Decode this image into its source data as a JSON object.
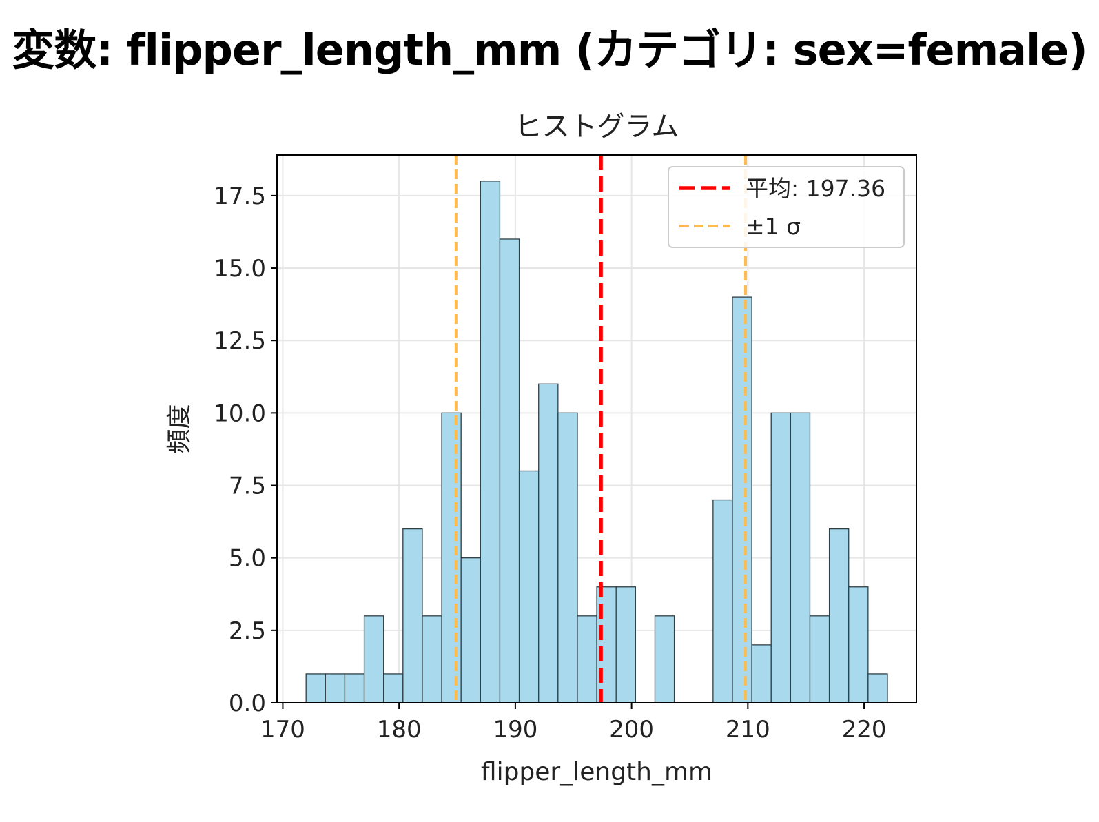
{
  "figure_title": "変数: flipper_length_mm (カテゴリ: sex=female)",
  "colors": {
    "bar_fill": "#a9d9ec",
    "bar_edge": "#2f3f46",
    "mean_line": "#ff0000",
    "sigma_line": "#ffbb4d",
    "grid": "#e6e6e6"
  },
  "chart_data": {
    "type": "bar",
    "subtype": "histogram",
    "title": "ヒストグラム",
    "xlabel": "flipper_length_mm",
    "ylabel": "頻度",
    "xlim": [
      169.5,
      224.5
    ],
    "ylim": [
      0,
      18.9
    ],
    "grid": true,
    "legend_position": "top-right",
    "x_ticks": [
      170,
      180,
      190,
      200,
      210,
      220
    ],
    "x_tick_labels": [
      "170",
      "180",
      "190",
      "200",
      "210",
      "220"
    ],
    "y_ticks": [
      0,
      2.5,
      5,
      7.5,
      10,
      12.5,
      15,
      17.5
    ],
    "y_tick_labels": [
      "0.0",
      "2.5",
      "5.0",
      "7.5",
      "10.0",
      "12.5",
      "15.0",
      "17.5"
    ],
    "bin_start": 172,
    "bin_width": 1.667,
    "values": [
      1,
      1,
      1,
      3,
      1,
      6,
      3,
      10,
      5,
      18,
      16,
      8,
      11,
      10,
      3,
      4,
      4,
      0,
      3,
      0,
      0,
      7,
      14,
      2,
      10,
      10,
      3,
      6,
      4,
      1
    ],
    "mean": 197.36,
    "sigma_low": 184.9,
    "sigma_high": 209.8,
    "legend": [
      {
        "label": "平均: 197.36",
        "style": "mean"
      },
      {
        "label": "±1 σ",
        "style": "sigma"
      }
    ]
  }
}
